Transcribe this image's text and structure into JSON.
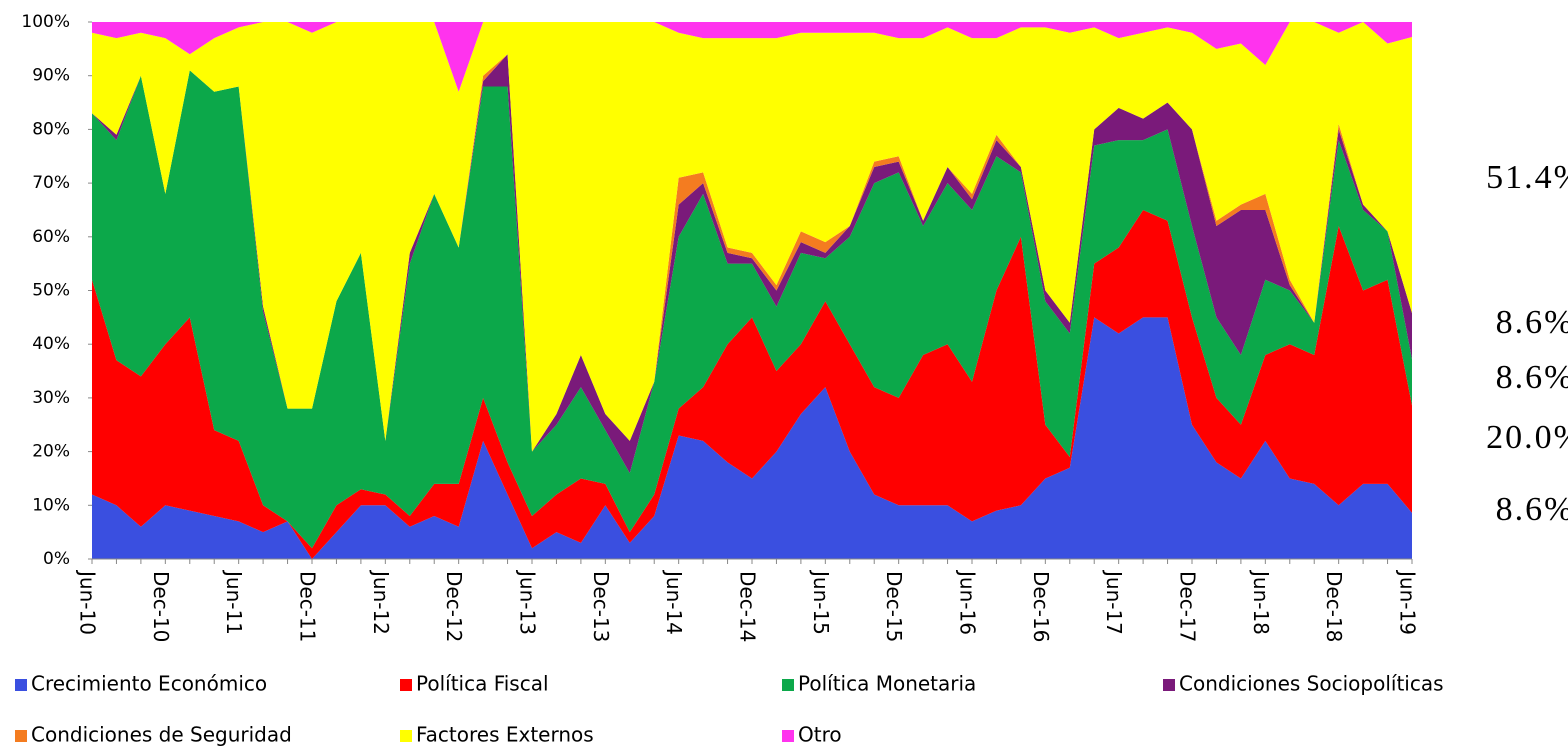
{
  "chart_data": {
    "type": "stacked_area_100",
    "categories": [
      "Jun-10",
      null,
      null,
      "Dec-10",
      null,
      null,
      "Jun-11",
      null,
      null,
      "Dec-11",
      null,
      null,
      "Jun-12",
      null,
      null,
      "Dec-12",
      null,
      null,
      "Jun-13",
      null,
      null,
      "Dec-13",
      null,
      null,
      "Jun-14",
      null,
      null,
      "Dec-14",
      null,
      null,
      "Jun-15",
      null,
      null,
      "Dec-15",
      null,
      null,
      "Jun-16",
      null,
      null,
      "Dec-16",
      null,
      null,
      "Jun-17",
      null,
      null,
      "Dec-17",
      null,
      null,
      "Jun-18",
      null,
      null,
      "Dec-18",
      null,
      null,
      "Jun-19"
    ],
    "series": [
      {
        "name": "Crecimiento Económico",
        "color": "#3a4fe0",
        "values": [
          12,
          10,
          6,
          10,
          9,
          8,
          7,
          5,
          7,
          0,
          5,
          10,
          10,
          6,
          8,
          6,
          22,
          12,
          2,
          5,
          3,
          10,
          3,
          8,
          23,
          22,
          18,
          15,
          20,
          27,
          32,
          20,
          12,
          10,
          10,
          10,
          7,
          9,
          10,
          15,
          17,
          45,
          42,
          45,
          45,
          25,
          18,
          15,
          22,
          15,
          14,
          10,
          14,
          14,
          8.6
        ]
      },
      {
        "name": "Política Fiscal",
        "color": "#ff0000",
        "values": [
          40,
          27,
          28,
          30,
          36,
          16,
          15,
          5,
          0,
          2,
          5,
          3,
          2,
          2,
          6,
          8,
          8,
          6,
          6,
          7,
          12,
          4,
          2,
          4,
          5,
          10,
          22,
          30,
          15,
          13,
          16,
          20,
          20,
          20,
          28,
          30,
          26,
          41,
          50,
          10,
          2,
          10,
          16,
          20,
          18,
          20,
          12,
          10,
          16,
          25,
          24,
          52,
          36,
          38,
          20
        ]
      },
      {
        "name": "Política Monetaria",
        "color": "#0ca84a",
        "values": [
          31,
          41,
          56,
          28,
          46,
          63,
          66,
          36,
          21,
          26,
          38,
          44,
          10,
          47,
          54,
          44,
          58,
          70,
          12,
          13,
          17,
          10,
          11,
          21,
          32,
          36,
          15,
          10,
          12,
          17,
          8,
          20,
          38,
          42,
          24,
          30,
          32,
          25,
          12,
          23,
          23,
          22,
          20,
          13,
          17,
          17,
          15,
          13,
          14,
          10,
          6,
          16,
          15,
          9,
          8.6
        ]
      },
      {
        "name": "Condiciones Sociopolíticas",
        "color": "#7a1a7a",
        "values": [
          0,
          1,
          0,
          0,
          0,
          0,
          0,
          1,
          0,
          0,
          0,
          0,
          0,
          2,
          0,
          0,
          1,
          6,
          0,
          2,
          6,
          3,
          6,
          0,
          6,
          2,
          2,
          1,
          3,
          2,
          1,
          2,
          3,
          2,
          1,
          3,
          2,
          3,
          1,
          2,
          2,
          3,
          6,
          4,
          5,
          18,
          17,
          27,
          13,
          1,
          0,
          2,
          1,
          0,
          8.6
        ]
      },
      {
        "name": "Condiciones de Seguridad",
        "color": "#f47c20",
        "values": [
          0,
          0,
          0,
          0,
          0,
          0,
          0,
          0,
          0,
          0,
          0,
          0,
          0,
          0,
          0,
          0,
          1,
          0,
          0,
          0,
          0,
          0,
          0,
          0,
          5,
          2,
          1,
          1,
          1,
          2,
          2,
          0,
          1,
          1,
          0,
          0,
          1,
          1,
          0,
          0,
          0,
          0,
          0,
          0,
          0,
          0,
          1,
          1,
          3,
          1,
          0,
          1,
          0,
          0,
          0
        ]
      },
      {
        "name": "Factores Externos",
        "color": "#ffff00",
        "values": [
          15,
          18,
          8,
          29,
          3,
          10,
          11,
          53,
          72,
          70,
          52,
          43,
          78,
          43,
          32,
          29,
          10,
          6,
          80,
          73,
          62,
          73,
          78,
          67,
          27,
          25,
          39,
          40,
          46,
          37,
          39,
          36,
          24,
          22,
          34,
          26,
          29,
          18,
          26,
          49,
          54,
          19,
          13,
          16,
          14,
          18,
          32,
          30,
          24,
          48,
          56,
          17,
          34,
          35,
          51.4
        ]
      },
      {
        "name": "Otro",
        "color": "#ff33ee",
        "values": [
          2,
          3,
          2,
          3,
          6,
          3,
          1,
          0,
          0,
          2,
          0,
          0,
          0,
          0,
          0,
          13,
          0,
          0,
          0,
          0,
          0,
          0,
          0,
          0,
          2,
          3,
          3,
          3,
          3,
          2,
          2,
          2,
          2,
          3,
          3,
          1,
          3,
          3,
          1,
          1,
          2,
          1,
          3,
          2,
          1,
          2,
          5,
          4,
          8,
          0,
          0,
          2,
          0,
          4,
          2.8
        ]
      }
    ],
    "ylim": [
      0,
      100
    ],
    "yticks": [
      {
        "value": 0,
        "label": "0%"
      },
      {
        "value": 10,
        "label": "10%"
      },
      {
        "value": 20,
        "label": "20%"
      },
      {
        "value": 30,
        "label": "30%"
      },
      {
        "value": 40,
        "label": "40%"
      },
      {
        "value": 50,
        "label": "50%"
      },
      {
        "value": 60,
        "label": "60%"
      },
      {
        "value": 70,
        "label": "70%"
      },
      {
        "value": 80,
        "label": "80%"
      },
      {
        "value": 90,
        "label": "90%"
      },
      {
        "value": 100,
        "label": "100%"
      }
    ],
    "annotations": [
      {
        "text": "51.4%",
        "color": "#f58d4f"
      },
      {
        "text": "8.6%",
        "color": "#8b1a4a"
      },
      {
        "text": "8.6%",
        "color": "#1a8a4a"
      },
      {
        "text": "20.0%",
        "color": "#e8207a"
      },
      {
        "text": "8.6%",
        "color": "#1a1a8a"
      }
    ]
  }
}
